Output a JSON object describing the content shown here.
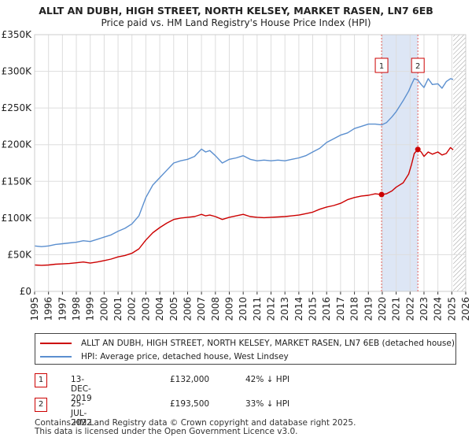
{
  "chart_data": {
    "type": "line",
    "title": "ALLT AN DUBH, HIGH STREET, NORTH KELSEY, MARKET RASEN, LN7 6EB",
    "subtitle": "Price paid vs. HM Land Registry's House Price Index (HPI)",
    "xlim": [
      1995,
      2026
    ],
    "ylim": [
      0,
      350000
    ],
    "x_ticks": [
      "1995",
      "1996",
      "1997",
      "1998",
      "1999",
      "2000",
      "2001",
      "2002",
      "2003",
      "2004",
      "2005",
      "2006",
      "2007",
      "2008",
      "2009",
      "2010",
      "2011",
      "2012",
      "2013",
      "2014",
      "2015",
      "2016",
      "2017",
      "2018",
      "2019",
      "2020",
      "2021",
      "2022",
      "2023",
      "2024",
      "2025",
      "2026"
    ],
    "y_ticks": [
      {
        "value": 0,
        "label": "£0"
      },
      {
        "value": 50000,
        "label": "£50K"
      },
      {
        "value": 100000,
        "label": "£100K"
      },
      {
        "value": 150000,
        "label": "£150K"
      },
      {
        "value": 200000,
        "label": "£200K"
      },
      {
        "value": 250000,
        "label": "£250K"
      },
      {
        "value": 300000,
        "label": "£300K"
      },
      {
        "value": 350000,
        "label": "£350K"
      }
    ],
    "grid": true,
    "shaded_period": {
      "start": 2019.95,
      "end": 2022.56,
      "color": "#dde6f5"
    },
    "hatched_future_start": 2025.1,
    "series": [
      {
        "name": "ALLT AN DUBH, HIGH STREET, NORTH KELSEY, MARKET RASEN, LN7 6EB (detached house)",
        "color": "#cc0000",
        "x": [
          1995.0,
          1995.5,
          1996.0,
          1996.5,
          1997.0,
          1997.5,
          1998.0,
          1998.5,
          1999.0,
          1999.5,
          2000.0,
          2000.5,
          2001.0,
          2001.5,
          2002.0,
          2002.5,
          2003.0,
          2003.5,
          2004.0,
          2004.5,
          2005.0,
          2005.5,
          2006.0,
          2006.5,
          2007.0,
          2007.3,
          2007.6,
          2008.0,
          2008.5,
          2009.0,
          2009.5,
          2010.0,
          2010.5,
          2011.0,
          2011.5,
          2012.0,
          2012.5,
          2013.0,
          2013.5,
          2014.0,
          2014.5,
          2015.0,
          2015.5,
          2016.0,
          2016.5,
          2017.0,
          2017.5,
          2018.0,
          2018.5,
          2019.0,
          2019.5,
          2019.95,
          2020.3,
          2020.7,
          2021.0,
          2021.5,
          2021.9,
          2022.1,
          2022.3,
          2022.56,
          2022.8,
          2023.0,
          2023.3,
          2023.6,
          2024.0,
          2024.3,
          2024.6,
          2024.9,
          2025.1
        ],
        "y": [
          36000,
          35500,
          36000,
          37000,
          37500,
          38000,
          39000,
          40000,
          38500,
          40000,
          42000,
          44000,
          47000,
          49000,
          52000,
          58000,
          70000,
          80000,
          87000,
          93000,
          98000,
          100000,
          101000,
          102000,
          105000,
          103000,
          104000,
          102000,
          98000,
          101000,
          103000,
          105000,
          102000,
          101000,
          100500,
          101000,
          101500,
          102000,
          103000,
          104000,
          106000,
          108000,
          112000,
          115000,
          117000,
          120000,
          125000,
          128000,
          130000,
          131000,
          133000,
          132000,
          133000,
          137000,
          142000,
          148000,
          160000,
          173000,
          188000,
          193500,
          190000,
          184000,
          190000,
          187000,
          190000,
          186000,
          188000,
          196000,
          193000
        ]
      },
      {
        "name": "HPI: Average price, detached house, West Lindsey",
        "color": "#5b8fcf",
        "x": [
          1995.0,
          1995.5,
          1996.0,
          1996.5,
          1997.0,
          1997.5,
          1998.0,
          1998.5,
          1999.0,
          1999.5,
          2000.0,
          2000.5,
          2001.0,
          2001.5,
          2002.0,
          2002.5,
          2003.0,
          2003.5,
          2004.0,
          2004.5,
          2005.0,
          2005.5,
          2006.0,
          2006.5,
          2007.0,
          2007.3,
          2007.6,
          2008.0,
          2008.5,
          2009.0,
          2009.5,
          2010.0,
          2010.5,
          2011.0,
          2011.5,
          2012.0,
          2012.5,
          2013.0,
          2013.5,
          2014.0,
          2014.5,
          2015.0,
          2015.5,
          2016.0,
          2016.5,
          2017.0,
          2017.5,
          2018.0,
          2018.5,
          2019.0,
          2019.5,
          2019.95,
          2020.3,
          2020.7,
          2021.0,
          2021.5,
          2021.9,
          2022.1,
          2022.3,
          2022.56,
          2022.8,
          2023.0,
          2023.3,
          2023.6,
          2024.0,
          2024.3,
          2024.6,
          2024.9,
          2025.1
        ],
        "y": [
          62000,
          61000,
          62000,
          64000,
          65000,
          66000,
          67000,
          69000,
          68000,
          71000,
          74000,
          77000,
          82000,
          86000,
          92000,
          103000,
          128000,
          145000,
          155000,
          165000,
          175000,
          178000,
          180000,
          184000,
          194000,
          190000,
          192000,
          185000,
          175000,
          180000,
          182000,
          185000,
          180000,
          178000,
          179000,
          178000,
          179000,
          178000,
          180000,
          182000,
          185000,
          190000,
          195000,
          203000,
          208000,
          213000,
          216000,
          222000,
          225000,
          228000,
          228000,
          227000,
          230000,
          238000,
          245000,
          260000,
          273000,
          282000,
          290000,
          288000,
          282000,
          278000,
          290000,
          282000,
          283000,
          277000,
          286000,
          290000,
          289000
        ]
      }
    ],
    "markers": [
      {
        "label": "1",
        "x": 2019.95,
        "y": 132000
      },
      {
        "label": "2",
        "x": 2022.56,
        "y": 193500
      }
    ]
  },
  "legend": {
    "property": "ALLT AN DUBH, HIGH STREET, NORTH KELSEY, MARKET RASEN, LN7 6EB (detached house)",
    "hpi": "HPI: Average price, detached house, West Lindsey"
  },
  "transactions": [
    {
      "num": "1",
      "date": "13-DEC-2019",
      "price": "£132,000",
      "hpi": "42% ↓ HPI"
    },
    {
      "num": "2",
      "date": "25-JUL-2022",
      "price": "£193,500",
      "hpi": "33% ↓ HPI"
    }
  ],
  "footer": {
    "line1": "Contains HM Land Registry data © Crown copyright and database right 2025.",
    "line2": "This data is licensed under the Open Government Licence v3.0."
  }
}
